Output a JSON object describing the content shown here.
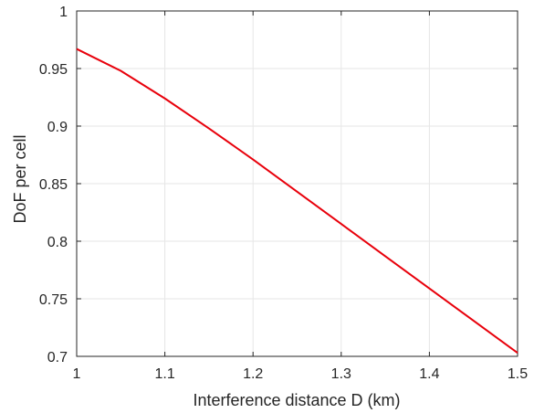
{
  "chart_data": {
    "type": "line",
    "title": "",
    "xlabel": "Interference distance D (km)",
    "ylabel": "DoF per cell",
    "xlim": [
      1,
      1.5
    ],
    "ylim": [
      0.7,
      1
    ],
    "xticks": [
      "1",
      "1.1",
      "1.2",
      "1.3",
      "1.4",
      "1.5"
    ],
    "yticks": [
      "0.7",
      "0.75",
      "0.8",
      "0.85",
      "0.9",
      "0.95",
      "1"
    ],
    "grid": true,
    "series": [
      {
        "color": "#e8000b",
        "x": [
          1.0,
          1.05,
          1.1,
          1.15,
          1.2,
          1.25,
          1.3,
          1.35,
          1.4,
          1.45,
          1.5
        ],
        "y": [
          0.967,
          0.948,
          0.924,
          0.898,
          0.871,
          0.843,
          0.815,
          0.787,
          0.759,
          0.731,
          0.703
        ]
      }
    ]
  }
}
